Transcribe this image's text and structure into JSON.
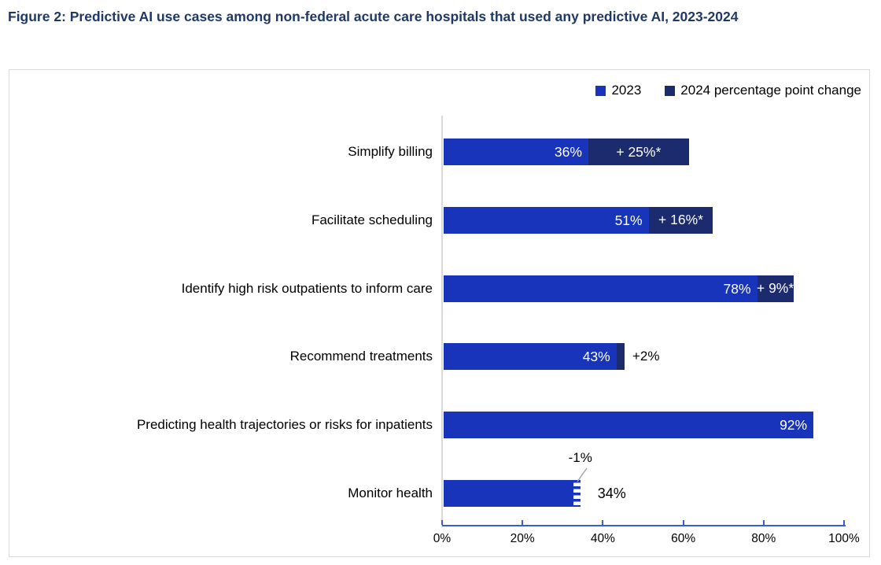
{
  "figure": {
    "title": "Figure 2: Predictive AI use cases among non-federal acute care hospitals that used any predictive AI, 2023-2024"
  },
  "legend": [
    {
      "label": "2023"
    },
    {
      "label": "2024 percentage point change"
    }
  ],
  "colors": {
    "bar_2023": "#1734BA",
    "bar_change_2024": "#1C2B6E",
    "axis_line": "#3D5BD8",
    "zero_line": "#D9D9D9",
    "title_text": "#1F3864",
    "callout_line": "#A6A6A6",
    "chart_border": "#D9D9D9",
    "label_on_bar": "#FFFFFF",
    "text": "#000000"
  },
  "chart_data": {
    "type": "bar",
    "orientation": "horizontal",
    "title": "Figure 2: Predictive AI use cases among non-federal acute care hospitals that used any predictive AI, 2023-2024",
    "categories": [
      "Simplify billing",
      "Facilitate scheduling",
      "Identify high risk outpatients to inform care",
      "Recommend treatments",
      "Predicting health trajectories or risks for inpatients",
      "Monitor health"
    ],
    "series": [
      {
        "name": "2023",
        "values": [
          36,
          51,
          78,
          43,
          92,
          34
        ]
      },
      {
        "name": "2024 percentage point change",
        "values": [
          25,
          16,
          9,
          2,
          null,
          -1
        ]
      }
    ],
    "x_ticks": [
      "0%",
      "20%",
      "40%",
      "60%",
      "80%",
      "100%"
    ],
    "xlim": [
      0,
      100
    ],
    "grid": false,
    "legend_position": "top-right",
    "rows": [
      {
        "category": "Simplify billing",
        "value": 36,
        "value_label": "36%",
        "value_label_pos": "inside",
        "change": 25,
        "change_label": "+ 25%*",
        "change_label_pos": "inside",
        "change_style": "solid"
      },
      {
        "category": "Facilitate scheduling",
        "value": 51,
        "value_label": "51%",
        "value_label_pos": "inside",
        "change": 16,
        "change_label": "+ 16%*",
        "change_label_pos": "inside",
        "change_style": "solid"
      },
      {
        "category": "Identify high risk outpatients to inform care",
        "value": 78,
        "value_label": "78%",
        "value_label_pos": "inside",
        "change": 9,
        "change_label": "+ 9%*",
        "change_label_pos": "inside",
        "change_style": "solid"
      },
      {
        "category": "Recommend treatments",
        "value": 43,
        "value_label": "43%",
        "value_label_pos": "inside",
        "change": 2,
        "change_label": "+2%",
        "change_label_pos": "outside",
        "change_style": "solid"
      },
      {
        "category": "Predicting health trajectories or risks for inpatients",
        "value": 92,
        "value_label": "92%",
        "value_label_pos": "inside",
        "change": null,
        "change_label": "",
        "change_label_pos": "none",
        "change_style": "none"
      },
      {
        "category": "Monitor health",
        "value": 34,
        "value_label": "34%",
        "value_label_pos": "outside",
        "change": -1,
        "change_label": "-1%",
        "change_label_pos": "callout",
        "change_style": "hatched",
        "annotation": "-1%"
      }
    ]
  }
}
